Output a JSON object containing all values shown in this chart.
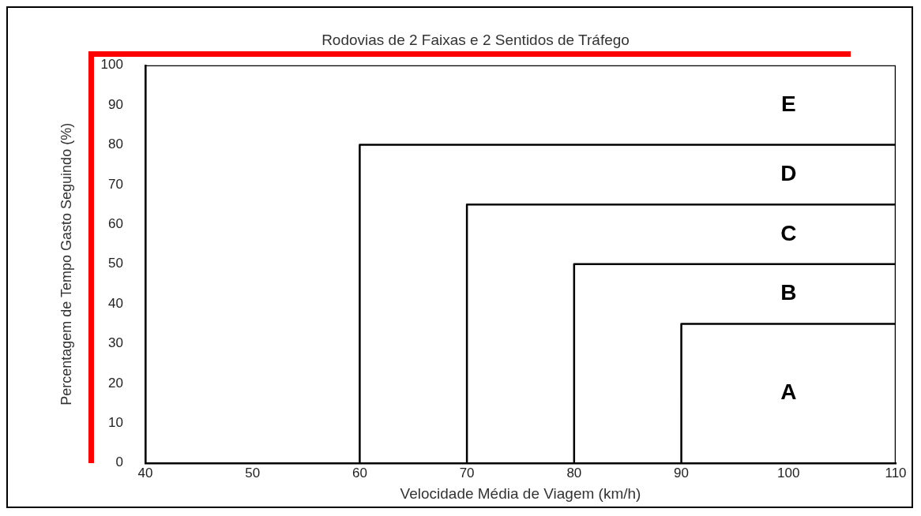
{
  "chart_data": {
    "type": "line",
    "title": "Rodovias de 2 Faixas e 2 Sentidos de Tráfego",
    "xlabel": "Velocidade Média de Viagem (km/h)",
    "ylabel": "Percentagem de Tempo Gasto Seguindo (%)",
    "xlim": [
      40,
      110
    ],
    "xticks": [
      40,
      50,
      60,
      70,
      80,
      90,
      100,
      110
    ],
    "ylim": [
      0,
      100
    ],
    "yticks": [
      0,
      10,
      20,
      30,
      40,
      50,
      60,
      70,
      80,
      90,
      100
    ],
    "grid": false,
    "legend": false,
    "marker": "none",
    "line_style": "solid",
    "series": [
      {
        "color": "#000000",
        "x": [
          40,
          40,
          110,
          110
        ],
        "values": [
          0,
          100,
          100,
          0
        ]
      },
      {
        "color": "#000000",
        "x": [
          60,
          60,
          110
        ],
        "values": [
          0,
          80,
          80
        ]
      },
      {
        "color": "#000000",
        "x": [
          70,
          70,
          110
        ],
        "values": [
          0,
          65,
          65
        ]
      },
      {
        "color": "#000000",
        "x": [
          80,
          80,
          110
        ],
        "values": [
          0,
          50,
          50
        ]
      },
      {
        "color": "#000000",
        "x": [
          90,
          90,
          110
        ],
        "values": [
          0,
          35,
          35
        ]
      }
    ],
    "annotations": [
      "E",
      "D",
      "C",
      "B",
      "A"
    ]
  }
}
